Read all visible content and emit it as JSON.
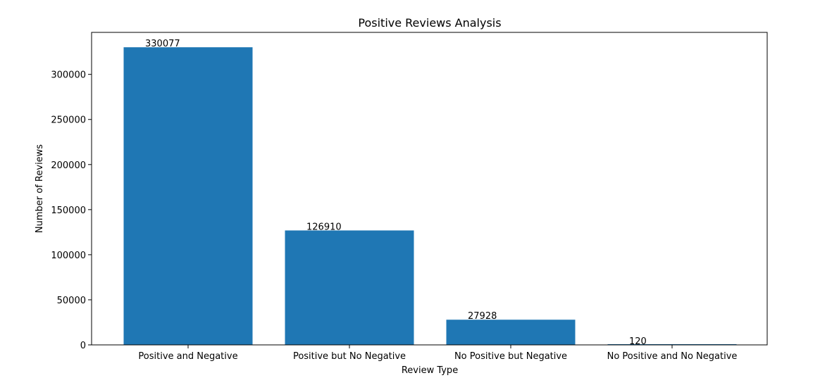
{
  "chart_data": {
    "type": "bar",
    "title": "Positive Reviews Analysis",
    "xlabel": "Review Type",
    "ylabel": "Number of Reviews",
    "categories": [
      "Positive and Negative",
      "Positive but No Negative",
      "No Positive but Negative",
      "No Positive and No Negative"
    ],
    "values": [
      330077,
      126910,
      27928,
      120
    ],
    "data_labels": [
      "330077",
      "126910",
      "27928",
      "120"
    ],
    "ylim": [
      0,
      346581
    ],
    "yticks": [
      0,
      50000,
      100000,
      150000,
      200000,
      250000,
      300000
    ],
    "ytick_labels": [
      "0",
      "50000",
      "100000",
      "150000",
      "200000",
      "250000",
      "300000"
    ],
    "bar_color": "#1f77b4",
    "grid": false,
    "legend": "none"
  }
}
